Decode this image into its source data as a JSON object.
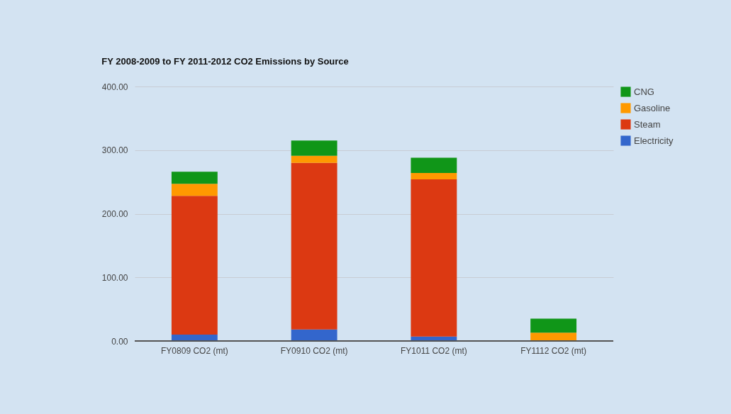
{
  "chart_data": {
    "type": "bar",
    "title": "FY 2008-2009 to FY 2011-2012 CO2 Emissions by Source",
    "stacked": true,
    "categories": [
      "FY0809 CO2 (mt)",
      "FY0910 CO2 (mt)",
      "FY1011 CO2 (mt)",
      "FY1112 CO2 (mt)"
    ],
    "series": [
      {
        "name": "Electricity",
        "color": "#3366cc",
        "values": [
          10,
          18,
          7,
          0
        ]
      },
      {
        "name": "Steam",
        "color": "#dc3912",
        "values": [
          218,
          262,
          247,
          0
        ]
      },
      {
        "name": "Gasoline",
        "color": "#ff9900",
        "values": [
          19,
          11,
          10,
          13
        ]
      },
      {
        "name": "CNG",
        "color": "#109618",
        "values": [
          19,
          24,
          24,
          22
        ]
      }
    ],
    "ylim": [
      0,
      400
    ],
    "yticks": [
      {
        "value": 0,
        "label": "0.00"
      },
      {
        "value": 100,
        "label": "100.00"
      },
      {
        "value": 200,
        "label": "200.00"
      },
      {
        "value": 300,
        "label": "300.00"
      },
      {
        "value": 400,
        "label": "400.00"
      }
    ],
    "grid": "y",
    "legend": "top right"
  }
}
